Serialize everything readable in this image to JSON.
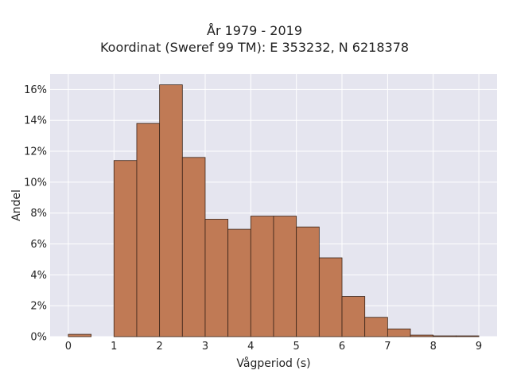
{
  "chart_data": {
    "type": "bar",
    "title": "År 1979 - 2019",
    "subtitle": "Koordinat (Sweref 99 TM): E 353232, N 6218378",
    "xlabel": "Vågperiod (s)",
    "ylabel": "Andel",
    "bin_width": 0.5,
    "bins": [
      {
        "start": 0.0,
        "value": 0.15
      },
      {
        "start": 0.5,
        "value": 0.0
      },
      {
        "start": 1.0,
        "value": 11.4
      },
      {
        "start": 1.5,
        "value": 13.8
      },
      {
        "start": 2.0,
        "value": 16.3
      },
      {
        "start": 2.5,
        "value": 11.6
      },
      {
        "start": 3.0,
        "value": 7.6
      },
      {
        "start": 3.5,
        "value": 6.95
      },
      {
        "start": 4.0,
        "value": 7.8
      },
      {
        "start": 4.5,
        "value": 7.8
      },
      {
        "start": 5.0,
        "value": 7.1
      },
      {
        "start": 5.5,
        "value": 5.1
      },
      {
        "start": 6.0,
        "value": 2.6
      },
      {
        "start": 6.5,
        "value": 1.25
      },
      {
        "start": 7.0,
        "value": 0.5
      },
      {
        "start": 7.5,
        "value": 0.1
      },
      {
        "start": 8.0,
        "value": 0.05
      },
      {
        "start": 8.5,
        "value": 0.05
      }
    ],
    "xlim": [
      -0.4,
      9.4
    ],
    "ylim": [
      0,
      17
    ],
    "xticks": [
      0,
      1,
      2,
      3,
      4,
      5,
      6,
      7,
      8,
      9
    ],
    "yticks": [
      0,
      2,
      4,
      6,
      8,
      10,
      12,
      14,
      16
    ],
    "ytick_format": "percent",
    "grid": true,
    "colors": {
      "bar_fill": "#c07a55",
      "bar_edge": "#3a2418",
      "plot_bg": "#e5e5ef",
      "grid": "#ffffff"
    }
  }
}
